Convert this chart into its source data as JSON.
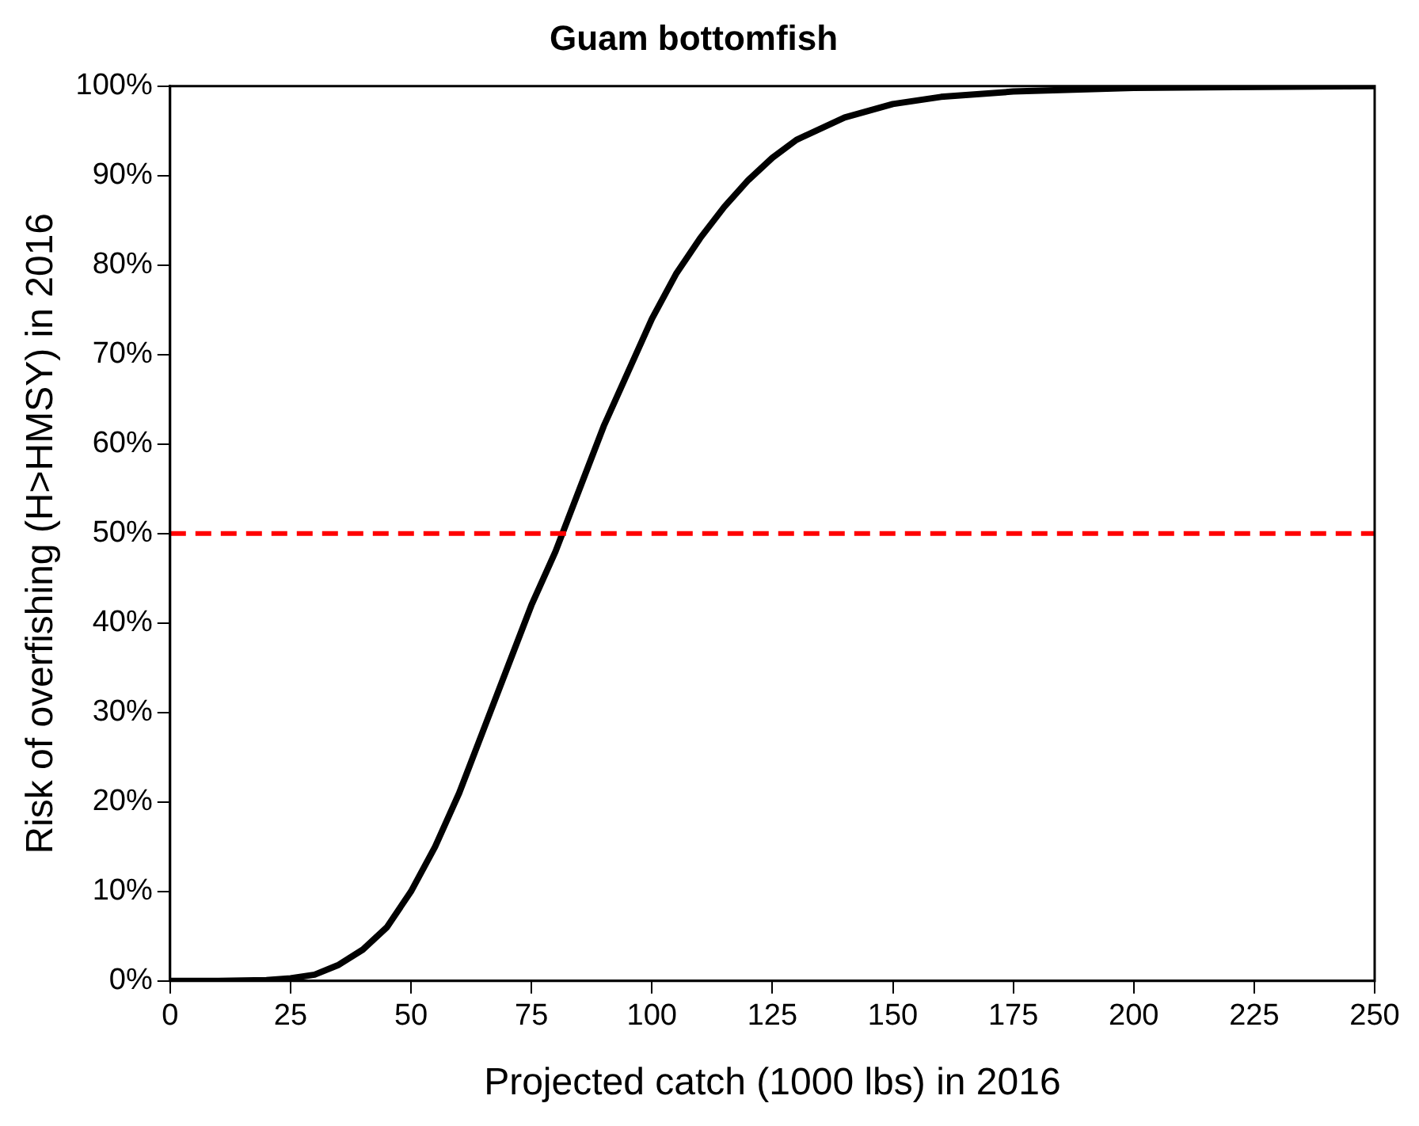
{
  "chart_data": {
    "type": "line",
    "title": "Guam bottomfish",
    "xlabel": "Projected catch (1000 lbs) in 2016",
    "ylabel": "Risk of overfishing (H>HMSY) in 2016",
    "series": [
      {
        "color": "#000000",
        "x": [
          0,
          10,
          20,
          25,
          30,
          35,
          40,
          45,
          50,
          55,
          60,
          65,
          70,
          75,
          80,
          85,
          90,
          95,
          100,
          105,
          110,
          115,
          120,
          125,
          130,
          140,
          150,
          160,
          175,
          200,
          250
        ],
        "values": [
          0,
          0,
          0.1,
          0.3,
          0.7,
          1.8,
          3.5,
          6,
          10,
          15,
          21,
          28,
          35,
          42,
          48,
          55,
          62,
          68,
          74,
          79,
          83,
          86.5,
          89.5,
          92,
          94,
          96.5,
          98,
          98.8,
          99.4,
          99.8,
          100
        ]
      }
    ],
    "xlim": [
      0,
      250
    ],
    "xticks": [
      0,
      25,
      50,
      75,
      100,
      125,
      150,
      175,
      200,
      225,
      250
    ],
    "ylim": [
      0,
      100
    ],
    "yticks": [
      {
        "value": 0,
        "label": "0%"
      },
      {
        "value": 10,
        "label": "10%"
      },
      {
        "value": 20,
        "label": "20%"
      },
      {
        "value": 30,
        "label": "30%"
      },
      {
        "value": 40,
        "label": "40%"
      },
      {
        "value": 50,
        "label": "50%"
      },
      {
        "value": 60,
        "label": "60%"
      },
      {
        "value": 70,
        "label": "70%"
      },
      {
        "value": 80,
        "label": "80%"
      },
      {
        "value": 90,
        "label": "90%"
      },
      {
        "value": 100,
        "label": "100%"
      }
    ],
    "ref_lines": [
      {
        "axis": "y",
        "value": 50,
        "color": "#ff0000",
        "line_style": "dashed"
      }
    ],
    "grid": false,
    "legend": false,
    "marker": "none",
    "line_style": "solid"
  }
}
